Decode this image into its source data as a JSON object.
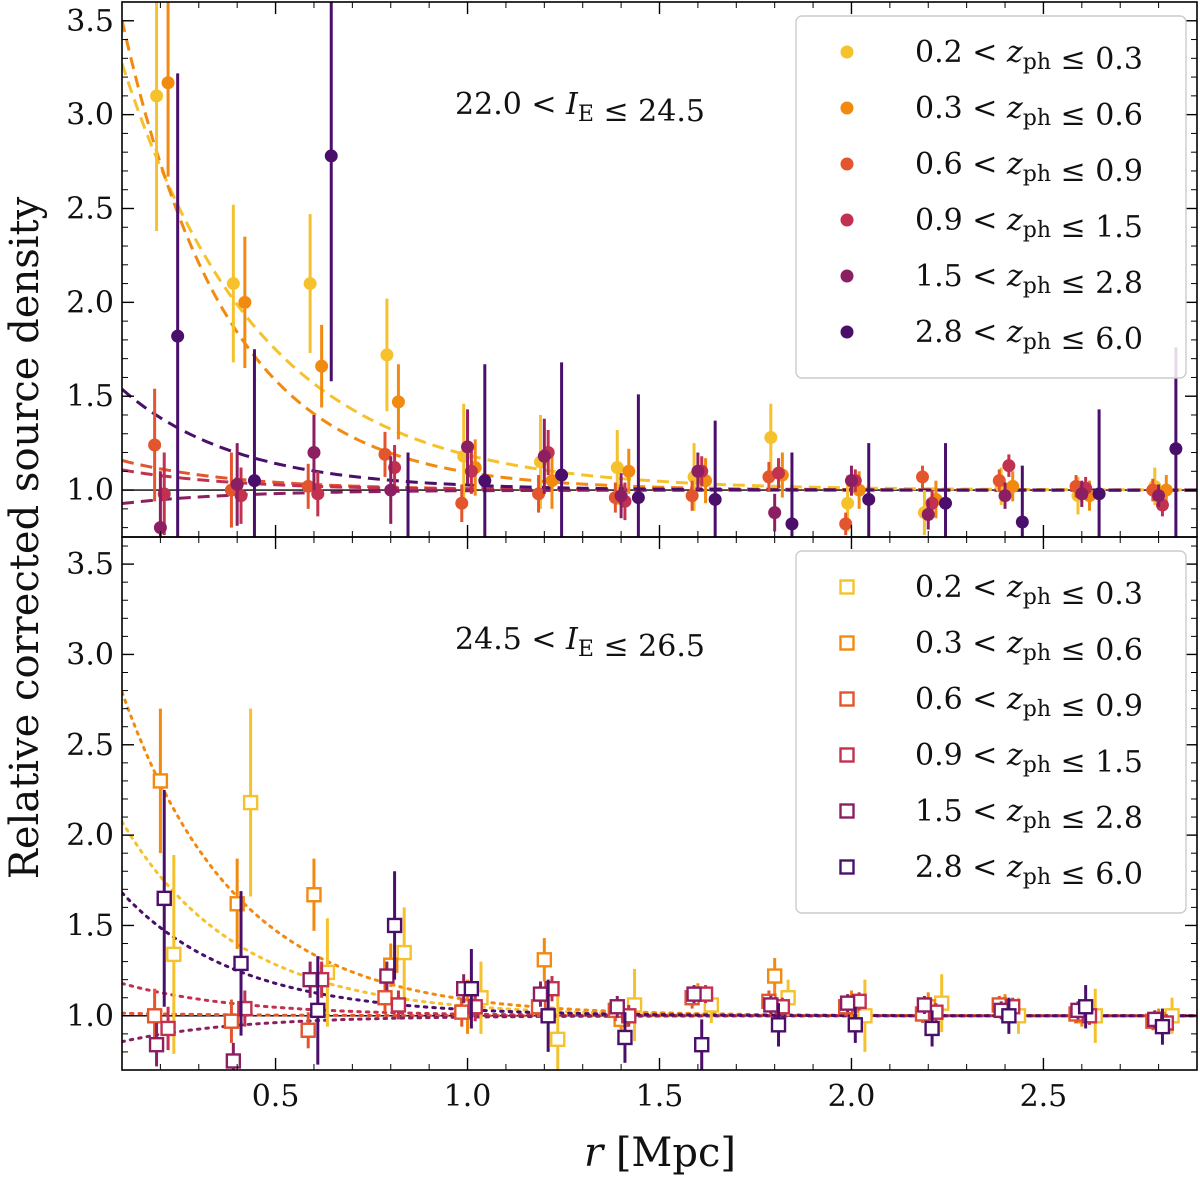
{
  "chart_data": {
    "type": "scatter",
    "ylabel": "Relative corrected source density",
    "xlabel": "r [Mpc]",
    "xlim": [
      0.1,
      2.9
    ],
    "xticks": [
      0.5,
      1.0,
      1.5,
      2.0,
      2.5
    ],
    "grid": false,
    "colors": [
      "#f5c22e",
      "#f28a10",
      "#e2552d",
      "#c2314f",
      "#8b1f62",
      "#4a0f6b"
    ],
    "bin_labels": [
      "0.2 < z_ph ≤ 0.3",
      "0.3 < z_ph ≤ 0.6",
      "0.6 < z_ph ≤ 0.9",
      "0.9 < z_ph ≤ 1.5",
      "1.5 < z_ph ≤ 2.8",
      "2.8 < z_ph ≤ 6.0"
    ],
    "panels": [
      {
        "annotation": "22.0 < I_E ≤ 24.5",
        "marker": "filled-circle",
        "fit_style": "dashed",
        "ylim": [
          0.75,
          3.6
        ],
        "yticks": [
          1.0,
          1.5,
          2.0,
          2.5,
          3.0,
          3.5
        ],
        "legend_position": "top-right",
        "x": [
          0.2,
          0.4,
          0.6,
          0.8,
          1.0,
          1.2,
          1.4,
          1.6,
          1.8,
          2.0,
          2.2,
          2.4,
          2.6,
          2.8
        ],
        "series": [
          {
            "label_index": 0,
            "x_offset": -0.01,
            "values": [
              3.1,
              2.1,
              2.1,
              1.72,
              1.18,
              1.15,
              1.12,
              1.07,
              1.28,
              0.93,
              0.88,
              1.02,
              0.97,
              1.02
            ],
            "errors": [
              0.72,
              0.42,
              0.37,
              0.3,
              0.28,
              0.25,
              0.2,
              0.18,
              0.18,
              0.15,
              0.12,
              0.1,
              0.1,
              0.1
            ],
            "fit_amplitude": 3.0,
            "fit_scale": 0.36
          },
          {
            "label_index": 1,
            "x_offset": 0.02,
            "values": [
              3.17,
              2.0,
              1.66,
              1.47,
              1.12,
              1.05,
              1.1,
              1.05,
              1.08,
              1.0,
              0.95,
              1.02,
              0.97,
              1.0
            ],
            "errors": [
              0.5,
              0.35,
              0.22,
              0.2,
              0.15,
              0.15,
              0.12,
              0.12,
              0.12,
              0.1,
              0.1,
              0.08,
              0.08,
              0.08
            ],
            "fit_amplitude": 3.6,
            "fit_scale": 0.275
          },
          {
            "label_index": 2,
            "x_offset": -0.015,
            "values": [
              1.24,
              1.0,
              1.02,
              1.19,
              0.93,
              0.98,
              0.96,
              0.97,
              1.07,
              0.82,
              1.07,
              1.05,
              1.02,
              1.0
            ],
            "errors": [
              0.3,
              0.2,
              0.12,
              0.12,
              0.1,
              0.1,
              0.08,
              0.08,
              0.08,
              0.06,
              0.06,
              0.06,
              0.06,
              0.06
            ],
            "fit_amplitude": 0.22,
            "fit_scale": 0.3
          },
          {
            "label_index": 3,
            "x_offset": 0.01,
            "values": [
              0.98,
              0.97,
              0.98,
              1.12,
              1.1,
              1.2,
              0.94,
              1.1,
              1.09,
              1.05,
              0.93,
              1.13,
              1.01,
              0.92
            ],
            "errors": [
              0.22,
              0.15,
              0.12,
              0.12,
              0.12,
              0.12,
              0.1,
              0.08,
              0.08,
              0.06,
              0.07,
              0.06,
              0.06,
              0.06
            ],
            "fit_amplitude": 0.15,
            "fit_scale": 0.3
          },
          {
            "label_index": 4,
            "x_offset": 0.0,
            "values": [
              0.8,
              1.03,
              1.2,
              1.0,
              1.23,
              1.18,
              0.97,
              1.1,
              0.88,
              1.05,
              0.87,
              0.97,
              0.98,
              0.97
            ],
            "errors": [
              0.3,
              0.22,
              0.2,
              0.18,
              0.2,
              0.2,
              0.12,
              0.1,
              0.1,
              0.08,
              0.08,
              0.07,
              0.07,
              0.06
            ],
            "fit_amplitude": -0.1,
            "fit_scale": 0.3
          },
          {
            "label_index": 5,
            "x_offset": 0.045,
            "values": [
              1.82,
              1.05,
              2.78,
              0.6,
              1.05,
              1.08,
              0.96,
              0.95,
              0.82,
              0.95,
              0.93,
              0.83,
              0.98,
              1.22
            ],
            "errors": [
              1.4,
              0.7,
              1.2,
              0.6,
              0.62,
              0.6,
              0.55,
              0.42,
              0.38,
              0.3,
              0.32,
              0.3,
              0.45,
              0.54
            ],
            "fit_amplitude": 0.75,
            "fit_scale": 0.3
          }
        ]
      },
      {
        "annotation": "24.5 < I_E ≤ 26.5",
        "marker": "open-square",
        "fit_style": "dotted",
        "ylim": [
          0.7,
          3.65
        ],
        "yticks": [
          1.0,
          1.5,
          2.0,
          2.5,
          3.0,
          3.5
        ],
        "legend_position": "top-right",
        "x": [
          0.2,
          0.4,
          0.6,
          0.8,
          1.0,
          1.2,
          1.4,
          1.6,
          1.8,
          2.0,
          2.2,
          2.4,
          2.6,
          2.8
        ],
        "series": [
          {
            "label_index": 0,
            "x_offset": 0.035,
            "values": [
              1.34,
              2.18,
              1.24,
              1.35,
              1.1,
              0.87,
              1.06,
              1.06,
              1.1,
              1.0,
              1.07,
              1.0,
              1.0,
              1.0
            ],
            "errors": [
              0.55,
              0.52,
              0.3,
              0.25,
              0.2,
              0.28,
              0.2,
              0.1,
              0.1,
              0.2,
              0.16,
              0.1,
              0.15,
              0.1
            ],
            "fit_amplitude": 1.5,
            "fit_scale": 0.3
          },
          {
            "label_index": 1,
            "x_offset": 0.0,
            "values": [
              2.3,
              1.62,
              1.67,
              1.28,
              1.05,
              1.31,
              0.98,
              1.12,
              1.22,
              1.06,
              1.05,
              1.04,
              1.0,
              0.98
            ],
            "errors": [
              0.4,
              0.25,
              0.2,
              0.12,
              0.15,
              0.12,
              0.08,
              0.06,
              0.1,
              0.08,
              0.08,
              0.08,
              0.06,
              0.06
            ],
            "fit_amplitude": 2.5,
            "fit_scale": 0.3
          },
          {
            "label_index": 2,
            "x_offset": -0.015,
            "values": [
              1.0,
              0.97,
              0.92,
              1.1,
              1.02,
              1.05,
              1.03,
              1.1,
              1.08,
              1.05,
              1.01,
              1.06,
              1.01,
              0.97
            ],
            "errors": [
              0.15,
              0.12,
              0.1,
              0.08,
              0.08,
              0.06,
              0.06,
              0.06,
              0.06,
              0.05,
              0.05,
              0.05,
              0.05,
              0.05
            ],
            "fit_amplitude": 0.02,
            "fit_scale": 0.3
          },
          {
            "label_index": 3,
            "x_offset": 0.02,
            "values": [
              0.93,
              1.04,
              1.2,
              1.06,
              1.05,
              1.15,
              1.0,
              1.12,
              1.05,
              1.08,
              1.02,
              1.05,
              1.0,
              0.96
            ],
            "errors": [
              0.12,
              0.1,
              0.1,
              0.08,
              0.08,
              0.07,
              0.06,
              0.05,
              0.05,
              0.05,
              0.05,
              0.05,
              0.05,
              0.05
            ],
            "fit_amplitude": 0.25,
            "fit_scale": 0.3
          },
          {
            "label_index": 4,
            "x_offset": -0.01,
            "values": [
              0.84,
              0.75,
              1.2,
              1.22,
              1.15,
              1.12,
              1.05,
              1.12,
              1.06,
              1.07,
              1.06,
              1.03,
              1.03,
              0.98
            ],
            "errors": [
              0.12,
              0.1,
              0.1,
              0.08,
              0.08,
              0.07,
              0.06,
              0.05,
              0.05,
              0.05,
              0.05,
              0.05,
              0.05,
              0.05
            ],
            "fit_amplitude": -0.2,
            "fit_scale": 0.3
          },
          {
            "label_index": 5,
            "x_offset": 0.01,
            "values": [
              1.65,
              1.29,
              1.03,
              1.5,
              1.15,
              1.0,
              0.88,
              0.84,
              0.95,
              0.95,
              0.93,
              1.0,
              1.05,
              0.94
            ],
            "errors": [
              0.6,
              0.4,
              0.3,
              0.3,
              0.22,
              0.2,
              0.14,
              0.14,
              0.12,
              0.1,
              0.1,
              0.1,
              0.12,
              0.1
            ],
            "fit_amplitude": 0.95,
            "fit_scale": 0.3
          }
        ]
      }
    ]
  }
}
